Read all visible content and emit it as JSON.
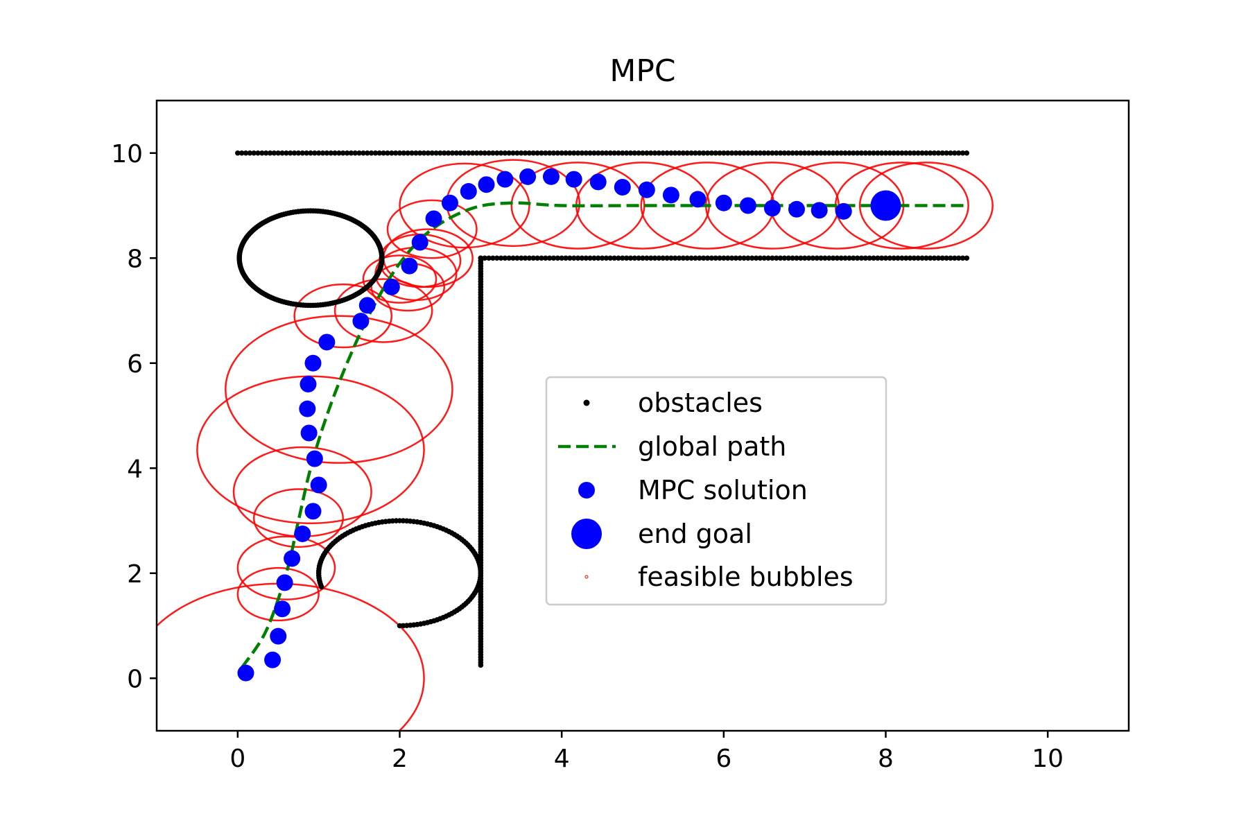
{
  "chart_data": {
    "type": "scatter",
    "title": "MPC",
    "xlabel": "",
    "ylabel": "",
    "xlim": [
      -1,
      11
    ],
    "ylim": [
      -1,
      11
    ],
    "xticks": [
      0,
      2,
      4,
      6,
      8,
      10
    ],
    "yticks": [
      0,
      2,
      4,
      6,
      8,
      10
    ],
    "grid": false,
    "legend_position": "center-right",
    "legend": [
      {
        "label": "obstacles",
        "marker": "small-dot",
        "color": "#000000"
      },
      {
        "label": "global path",
        "marker": "dashed-line",
        "color": "#008000"
      },
      {
        "label": "MPC solution",
        "marker": "dot",
        "color": "#0000ff"
      },
      {
        "label": "end goal",
        "marker": "large-dot",
        "color": "#0000ff"
      },
      {
        "label": "feasible bubbles",
        "marker": "tiny-ring",
        "color": "#ff0000"
      }
    ],
    "series": [
      {
        "name": "obstacles",
        "color": "#000000",
        "segments": [
          {
            "kind": "line",
            "from": [
              0,
              10
            ],
            "to": [
              9,
              10
            ],
            "step": 0.05
          },
          {
            "kind": "line",
            "from": [
              3,
              8
            ],
            "to": [
              9,
              8
            ],
            "step": 0.05
          },
          {
            "kind": "line",
            "from": [
              3,
              0.25
            ],
            "to": [
              3,
              8
            ],
            "step": 0.05
          },
          {
            "kind": "arc",
            "center": [
              0.9,
              8
            ],
            "radii": [
              0.88,
              0.9
            ],
            "start_deg": 0,
            "end_deg": 360,
            "step_deg": 2
          },
          {
            "kind": "arc",
            "center": [
              2,
              2
            ],
            "radii": [
              1,
              1
            ],
            "start_deg": -90,
            "end_deg": 195,
            "step_deg": 2.5
          }
        ]
      },
      {
        "name": "global path",
        "color": "#008000",
        "points": [
          [
            0.05,
            0.2
          ],
          [
            0.35,
            0.9
          ],
          [
            0.6,
            2.0
          ],
          [
            0.75,
            3.0
          ],
          [
            0.9,
            4.0
          ],
          [
            1.1,
            5.0
          ],
          [
            1.35,
            6.0
          ],
          [
            1.65,
            7.0
          ],
          [
            2.0,
            7.9
          ],
          [
            2.4,
            8.55
          ],
          [
            2.9,
            8.95
          ],
          [
            3.4,
            9.05
          ],
          [
            4.0,
            9.0
          ],
          [
            5.0,
            9.0
          ],
          [
            6.0,
            9.0
          ],
          [
            7.0,
            9.0
          ],
          [
            8.0,
            9.0
          ],
          [
            9.0,
            9.0
          ]
        ]
      },
      {
        "name": "MPC solution",
        "color": "#0000ff",
        "points": [
          [
            0.1,
            0.1
          ],
          [
            0.43,
            0.35
          ],
          [
            0.5,
            0.8
          ],
          [
            0.55,
            1.32
          ],
          [
            0.58,
            1.82
          ],
          [
            0.67,
            2.28
          ],
          [
            0.8,
            2.75
          ],
          [
            0.93,
            3.18
          ],
          [
            1.0,
            3.68
          ],
          [
            0.95,
            4.18
          ],
          [
            0.88,
            4.67
          ],
          [
            0.86,
            5.13
          ],
          [
            0.87,
            5.6
          ],
          [
            0.93,
            6.0
          ],
          [
            1.1,
            6.4
          ],
          [
            1.52,
            6.8
          ],
          [
            1.6,
            7.1
          ],
          [
            1.9,
            7.45
          ],
          [
            2.12,
            7.85
          ],
          [
            2.25,
            8.3
          ],
          [
            2.42,
            8.75
          ],
          [
            2.62,
            9.05
          ],
          [
            2.85,
            9.27
          ],
          [
            3.07,
            9.4
          ],
          [
            3.3,
            9.5
          ],
          [
            3.58,
            9.55
          ],
          [
            3.87,
            9.55
          ],
          [
            4.15,
            9.5
          ],
          [
            4.45,
            9.45
          ],
          [
            4.75,
            9.35
          ],
          [
            5.05,
            9.3
          ],
          [
            5.35,
            9.2
          ],
          [
            5.68,
            9.12
          ],
          [
            6.0,
            9.05
          ],
          [
            6.3,
            9.0
          ],
          [
            6.6,
            8.95
          ],
          [
            6.9,
            8.93
          ],
          [
            7.18,
            8.91
          ],
          [
            7.48,
            8.89
          ]
        ]
      },
      {
        "name": "end goal",
        "color": "#0000ff",
        "points": [
          [
            8,
            9
          ]
        ]
      },
      {
        "name": "feasible bubbles",
        "color": "#ff0000",
        "ellipses": [
          {
            "center": [
              0.5,
              0
            ],
            "radius": 1.8
          },
          {
            "center": [
              0.5,
              1.6
            ],
            "radius": 0.5
          },
          {
            "center": [
              0.6,
              2.1
            ],
            "radius": 0.6
          },
          {
            "center": [
              0.75,
              3.05
            ],
            "radius": 0.55
          },
          {
            "center": [
              0.8,
              3.55
            ],
            "radius": 0.85
          },
          {
            "center": [
              0.9,
              4.35
            ],
            "radius": 1.4
          },
          {
            "center": [
              1.25,
              5.5
            ],
            "radius": 1.4
          },
          {
            "center": [
              1.3,
              6.9
            ],
            "radius": 0.6
          },
          {
            "center": [
              1.8,
              7.0
            ],
            "radius": 0.6
          },
          {
            "center": [
              2.0,
              7.6
            ],
            "radius": 0.45
          },
          {
            "center": [
              2.1,
              7.45
            ],
            "radius": 0.45
          },
          {
            "center": [
              2.2,
              7.7
            ],
            "radius": 0.5
          },
          {
            "center": [
              2.25,
              7.95
            ],
            "radius": 0.5
          },
          {
            "center": [
              2.35,
              8.0
            ],
            "radius": 0.55
          },
          {
            "center": [
              2.4,
              8.55
            ],
            "radius": 0.55
          },
          {
            "center": [
              2.8,
              9.0
            ],
            "radius": 0.8
          },
          {
            "center": [
              3.4,
              9.05
            ],
            "radius": 0.82
          },
          {
            "center": [
              4.2,
              9.0
            ],
            "radius": 0.82
          },
          {
            "center": [
              5.0,
              9.0
            ],
            "radius": 0.82
          },
          {
            "center": [
              5.8,
              9.0
            ],
            "radius": 0.82
          },
          {
            "center": [
              6.6,
              9.0
            ],
            "radius": 0.82
          },
          {
            "center": [
              7.4,
              9.0
            ],
            "radius": 0.82
          },
          {
            "center": [
              8.2,
              9.0
            ],
            "radius": 0.82
          },
          {
            "center": [
              8.5,
              9.0
            ],
            "radius": 0.82
          }
        ]
      }
    ]
  }
}
